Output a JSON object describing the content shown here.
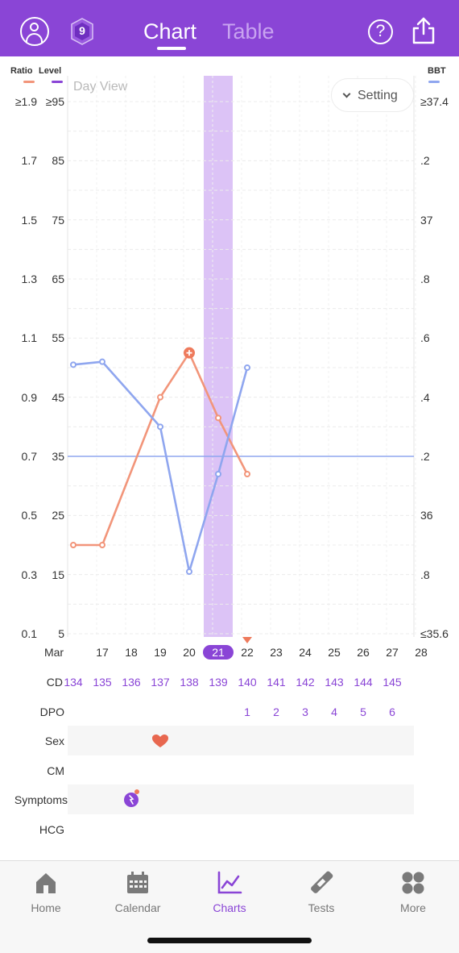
{
  "header": {
    "tab_chart": "Chart",
    "tab_table": "Table",
    "badge_number": "9",
    "accent_color": "#8a45d6"
  },
  "chart": {
    "left_axis_ratio_label": "Ratio",
    "left_axis_level_label": "Level",
    "right_axis_label": "BBT",
    "day_view_label": "Day View",
    "setting_label": "Setting",
    "ratio_ticks": [
      "≥1.9",
      "1.7",
      "1.5",
      "1.3",
      "1.1",
      "0.9",
      "0.7",
      "0.5",
      "0.3",
      "0.1"
    ],
    "level_ticks": [
      "≥95",
      "85",
      "75",
      "65",
      "55",
      "45",
      "35",
      "25",
      "15",
      "5"
    ],
    "bbt_ticks": [
      "≥37.4",
      ".2",
      "37",
      ".8",
      ".6",
      ".4",
      ".2",
      "36",
      ".8",
      "≤35.6"
    ],
    "month_label": "Mar",
    "dates": [
      "17",
      "18",
      "19",
      "20",
      "21",
      "22",
      "23",
      "24",
      "25",
      "26",
      "27",
      "28"
    ],
    "selected_date": "21",
    "cycle_label": "CD",
    "cycle_days": [
      "134",
      "135",
      "136",
      "137",
      "138",
      "139",
      "140",
      "141",
      "142",
      "143",
      "144",
      "145"
    ],
    "dpo_label": "DPO",
    "dpo_values": [
      "1",
      "2",
      "3",
      "4",
      "5",
      "6"
    ],
    "row_labels": {
      "sex": "Sex",
      "cm": "CM",
      "symptoms": "Symptoms",
      "hcg": "HCG"
    },
    "series_colors": {
      "ratio": "#f2957a",
      "level": "#8a45d6",
      "bbt": "#8fa6ef"
    }
  },
  "chart_data": {
    "type": "line",
    "x": [
      "16",
      "17",
      "18",
      "19",
      "20",
      "21",
      "22"
    ],
    "series": [
      {
        "values": [
          0.4,
          0.4,
          null,
          0.9,
          1.05,
          0.83,
          0.64
        ]
      },
      {
        "values": [
          36.51,
          36.52,
          null,
          36.3,
          35.81,
          36.14,
          36.5
        ]
      }
    ],
    "ratio_ylim": [
      0.1,
      1.9
    ],
    "bbt_ylim": [
      35.6,
      37.4
    ],
    "reference_line": 36.2,
    "highlight_x": "21",
    "peak_marker_x": "20"
  },
  "nav": {
    "home": "Home",
    "calendar": "Calendar",
    "charts": "Charts",
    "tests": "Tests",
    "more": "More"
  }
}
